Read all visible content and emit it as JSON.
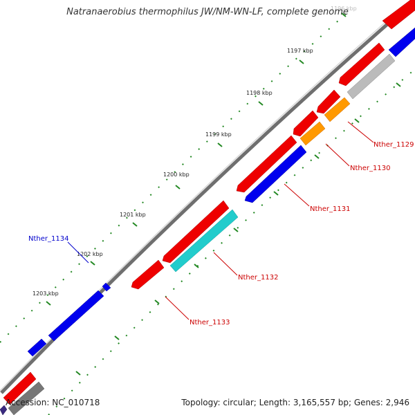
{
  "title": "Natranaerobius thermophilus JW/NM-WN-LF, complete genome",
  "accession": "Accession: NC_010718",
  "summary": "Topology: circular; Length: 3,165,557 bp; Genes: 2,946",
  "ticks": [
    {
      "label": "1196 kbp",
      "faded": true
    },
    {
      "label": "1197 kbp",
      "faded": false
    },
    {
      "label": "1198 kbp",
      "faded": false
    },
    {
      "label": "1199 kbp",
      "faded": false
    },
    {
      "label": "1200 kbp",
      "faded": false
    },
    {
      "label": "1201 kbp",
      "faded": false
    },
    {
      "label": "1202 kbp",
      "faded": false
    },
    {
      "label": "1203 kbp",
      "faded": false
    }
  ],
  "gene_labels": [
    {
      "name": "Nther_1129",
      "color": "#cc0000"
    },
    {
      "name": "Nther_1130",
      "color": "#cc0000"
    },
    {
      "name": "Nther_1131",
      "color": "#cc0000"
    },
    {
      "name": "Nther_1132",
      "color": "#cc0000"
    },
    {
      "name": "Nther_1133",
      "color": "#cc0000"
    },
    {
      "name": "Nther_1134",
      "color": "#0000cc"
    }
  ],
  "colors": {
    "backbone": "#8a8a8a",
    "forward_cds": "#ee0000",
    "reverse_cds": "#0000ee",
    "cyan_cds": "#22cccc",
    "orange_cds": "#ff9900",
    "gray_cds": "#bbbbbb",
    "dark_gray_cds": "#777777",
    "purple_cds": "#3a2a80",
    "tick_mark": "#228822"
  }
}
